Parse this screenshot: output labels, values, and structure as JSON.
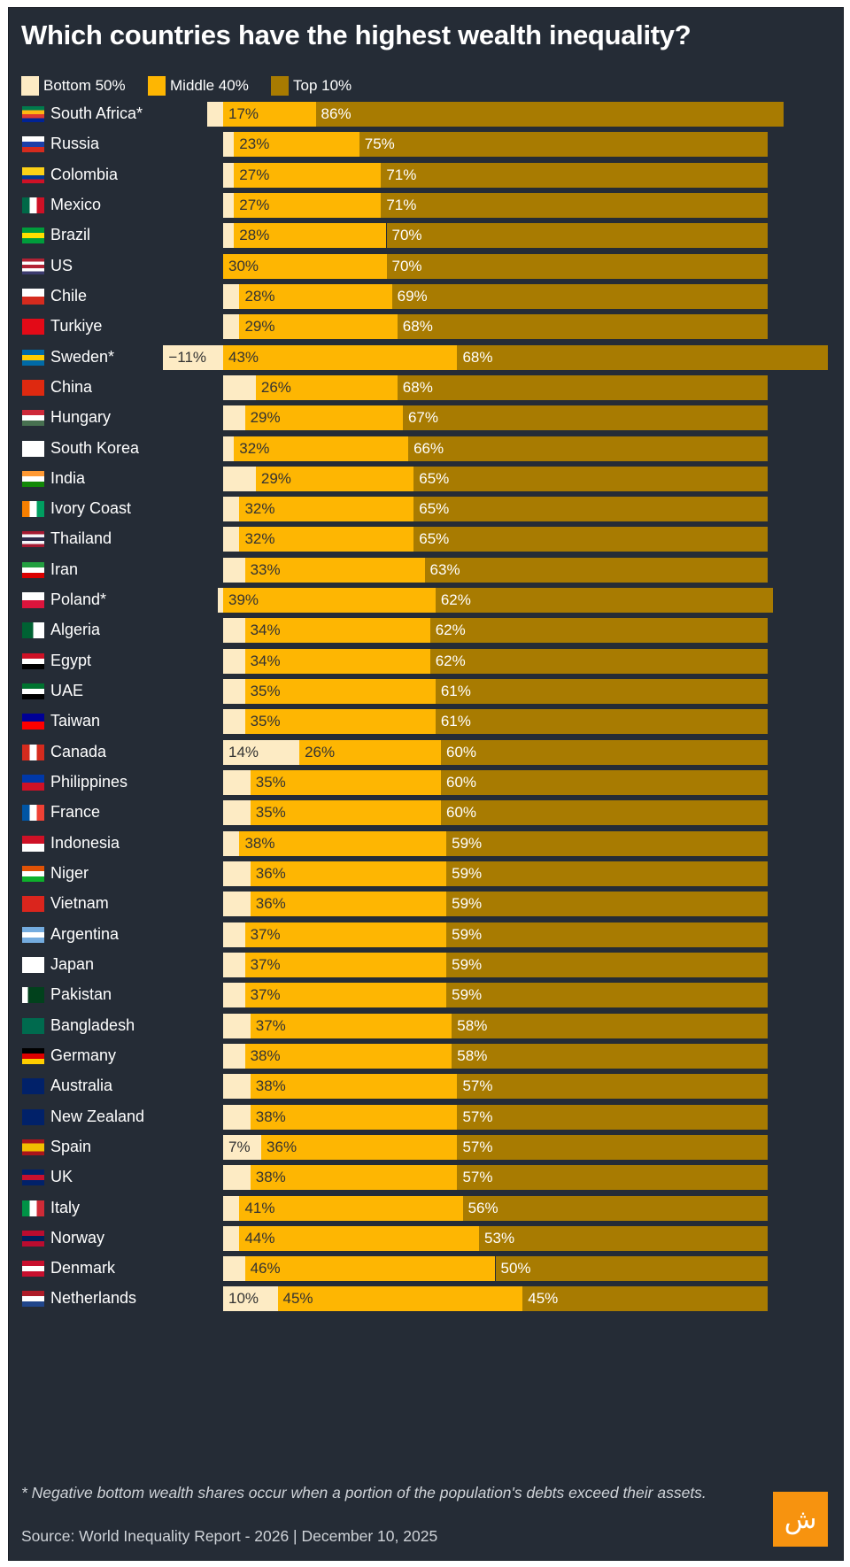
{
  "title": "Which countries have the highest wealth inequality?",
  "legend": [
    {
      "label": "Bottom 50%",
      "color": "#fdebc4"
    },
    {
      "label": "Middle 40%",
      "color": "#feb602"
    },
    {
      "label": "Top 10%",
      "color": "#a87b01"
    }
  ],
  "footnote": "* Negative bottom wealth shares occur when a portion of the population's debts exceed their assets.",
  "source": "Source: World Inequality Report - 2026 | December 10, 2025",
  "logo": "Al Jazeera logo",
  "chart_data": {
    "type": "bar",
    "orientation": "horizontal",
    "stacked": true,
    "unit": "%",
    "title": "Which countries have the highest wealth inequality?",
    "series_names": [
      "Bottom 50%",
      "Middle 40%",
      "Top 10%"
    ],
    "rows": [
      {
        "country": "South Africa*",
        "bottom": -3,
        "middle": 17,
        "top": 86,
        "flag": [
          "#007a4d",
          "#ffb612",
          "#de3831",
          "#002395"
        ]
      },
      {
        "country": "Russia",
        "bottom": 2,
        "middle": 23,
        "top": 75,
        "flag": [
          "#ffffff",
          "#1c3fa8",
          "#d52b1e"
        ]
      },
      {
        "country": "Colombia",
        "bottom": 2,
        "middle": 27,
        "top": 71,
        "flag": [
          "#fcd116",
          "#fcd116",
          "#003893",
          "#ce1126"
        ]
      },
      {
        "country": "Mexico",
        "bottom": 2,
        "middle": 27,
        "top": 71,
        "flag": [
          "#006847",
          "#ffffff",
          "#ce1126"
        ],
        "vertical": true
      },
      {
        "country": "Brazil",
        "bottom": 2,
        "middle": 28,
        "top": 70,
        "flag": [
          "#009c3b",
          "#ffdf00",
          "#009c3b"
        ]
      },
      {
        "country": "US",
        "bottom": 0,
        "middle": 30,
        "top": 70,
        "flag": [
          "#b22234",
          "#ffffff",
          "#b22234",
          "#ffffff",
          "#3c3b6e"
        ]
      },
      {
        "country": "Chile",
        "bottom": 3,
        "middle": 28,
        "top": 69,
        "flag": [
          "#ffffff",
          "#d52b1e"
        ]
      },
      {
        "country": "Turkiye",
        "bottom": 3,
        "middle": 29,
        "top": 68,
        "flag": [
          "#e30a17"
        ]
      },
      {
        "country": "Sweden*",
        "bottom": -11,
        "middle": 43,
        "top": 68,
        "bottom_label": "−11%",
        "flag": [
          "#006aa7",
          "#fecc00",
          "#006aa7"
        ]
      },
      {
        "country": "China",
        "bottom": 6,
        "middle": 26,
        "top": 68,
        "flag": [
          "#de2910"
        ]
      },
      {
        "country": "Hungary",
        "bottom": 4,
        "middle": 29,
        "top": 67,
        "flag": [
          "#ce2939",
          "#ffffff",
          "#477050"
        ]
      },
      {
        "country": "South Korea",
        "bottom": 2,
        "middle": 32,
        "top": 66,
        "flag": [
          "#ffffff"
        ]
      },
      {
        "country": "India",
        "bottom": 6,
        "middle": 29,
        "top": 65,
        "flag": [
          "#ff9933",
          "#ffffff",
          "#138808"
        ]
      },
      {
        "country": "Ivory Coast",
        "bottom": 3,
        "middle": 32,
        "top": 65,
        "flag": [
          "#f77f00",
          "#ffffff",
          "#009e60"
        ],
        "vertical": true
      },
      {
        "country": "Thailand",
        "bottom": 3,
        "middle": 32,
        "top": 65,
        "flag": [
          "#a51931",
          "#f4f5f8",
          "#2d2a4a",
          "#f4f5f8",
          "#a51931"
        ]
      },
      {
        "country": "Iran",
        "bottom": 4,
        "middle": 33,
        "top": 63,
        "flag": [
          "#239f40",
          "#ffffff",
          "#da0000"
        ]
      },
      {
        "country": "Poland*",
        "bottom": -1,
        "middle": 39,
        "top": 62,
        "flag": [
          "#ffffff",
          "#dc143c"
        ]
      },
      {
        "country": "Algeria",
        "bottom": 4,
        "middle": 34,
        "top": 62,
        "flag": [
          "#006233",
          "#ffffff"
        ],
        "vertical": true
      },
      {
        "country": "Egypt",
        "bottom": 4,
        "middle": 34,
        "top": 62,
        "flag": [
          "#ce1126",
          "#ffffff",
          "#000000"
        ]
      },
      {
        "country": "UAE",
        "bottom": 4,
        "middle": 35,
        "top": 61,
        "flag": [
          "#00732f",
          "#ffffff",
          "#000000"
        ]
      },
      {
        "country": "Taiwan",
        "bottom": 4,
        "middle": 35,
        "top": 61,
        "flag": [
          "#000095",
          "#fe0000"
        ]
      },
      {
        "country": "Canada",
        "bottom": 14,
        "middle": 26,
        "top": 60,
        "bottom_label": "14%",
        "flag": [
          "#d52b1e",
          "#ffffff",
          "#d52b1e"
        ],
        "vertical": true
      },
      {
        "country": "Philippines",
        "bottom": 5,
        "middle": 35,
        "top": 60,
        "flag": [
          "#0038a8",
          "#ce1126"
        ]
      },
      {
        "country": "France",
        "bottom": 5,
        "middle": 35,
        "top": 60,
        "flag": [
          "#0055a4",
          "#ffffff",
          "#ef4135"
        ],
        "vertical": true
      },
      {
        "country": "Indonesia",
        "bottom": 3,
        "middle": 38,
        "top": 59,
        "flag": [
          "#ce1126",
          "#ffffff"
        ]
      },
      {
        "country": "Niger",
        "bottom": 5,
        "middle": 36,
        "top": 59,
        "flag": [
          "#e05206",
          "#ffffff",
          "#0db02b"
        ]
      },
      {
        "country": "Vietnam",
        "bottom": 5,
        "middle": 36,
        "top": 59,
        "flag": [
          "#da251d"
        ]
      },
      {
        "country": "Argentina",
        "bottom": 4,
        "middle": 37,
        "top": 59,
        "flag": [
          "#74acdf",
          "#ffffff",
          "#74acdf"
        ]
      },
      {
        "country": "Japan",
        "bottom": 4,
        "middle": 37,
        "top": 59,
        "flag": [
          "#ffffff"
        ]
      },
      {
        "country": "Pakistan",
        "bottom": 4,
        "middle": 37,
        "top": 59,
        "flag": [
          "#ffffff",
          "#01411c",
          "#01411c",
          "#01411c"
        ],
        "vertical": true
      },
      {
        "country": "Bangladesh",
        "bottom": 5,
        "middle": 37,
        "top": 58,
        "flag": [
          "#006a4e"
        ]
      },
      {
        "country": "Germany",
        "bottom": 4,
        "middle": 38,
        "top": 58,
        "flag": [
          "#000000",
          "#dd0000",
          "#ffce00"
        ]
      },
      {
        "country": "Australia",
        "bottom": 5,
        "middle": 38,
        "top": 57,
        "flag": [
          "#012169"
        ]
      },
      {
        "country": "New Zealand",
        "bottom": 5,
        "middle": 38,
        "top": 57,
        "flag": [
          "#012169"
        ]
      },
      {
        "country": "Spain",
        "bottom": 7,
        "middle": 36,
        "top": 57,
        "bottom_label": "7%",
        "flag": [
          "#aa151b",
          "#f1bf00",
          "#f1bf00",
          "#aa151b"
        ]
      },
      {
        "country": "UK",
        "bottom": 5,
        "middle": 38,
        "top": 57,
        "flag": [
          "#012169",
          "#c8102e",
          "#012169"
        ]
      },
      {
        "country": "Italy",
        "bottom": 3,
        "middle": 41,
        "top": 56,
        "flag": [
          "#009246",
          "#ffffff",
          "#ce2b37"
        ],
        "vertical": true
      },
      {
        "country": "Norway",
        "bottom": 3,
        "middle": 44,
        "top": 53,
        "flag": [
          "#ba0c2f",
          "#00205b",
          "#ba0c2f"
        ]
      },
      {
        "country": "Denmark",
        "bottom": 4,
        "middle": 46,
        "top": 50,
        "flag": [
          "#c8102e",
          "#ffffff",
          "#c8102e"
        ]
      },
      {
        "country": "Netherlands",
        "bottom": 10,
        "middle": 45,
        "top": 45,
        "bottom_label": "10%",
        "flag": [
          "#ae1c28",
          "#ffffff",
          "#21468b"
        ]
      }
    ]
  }
}
